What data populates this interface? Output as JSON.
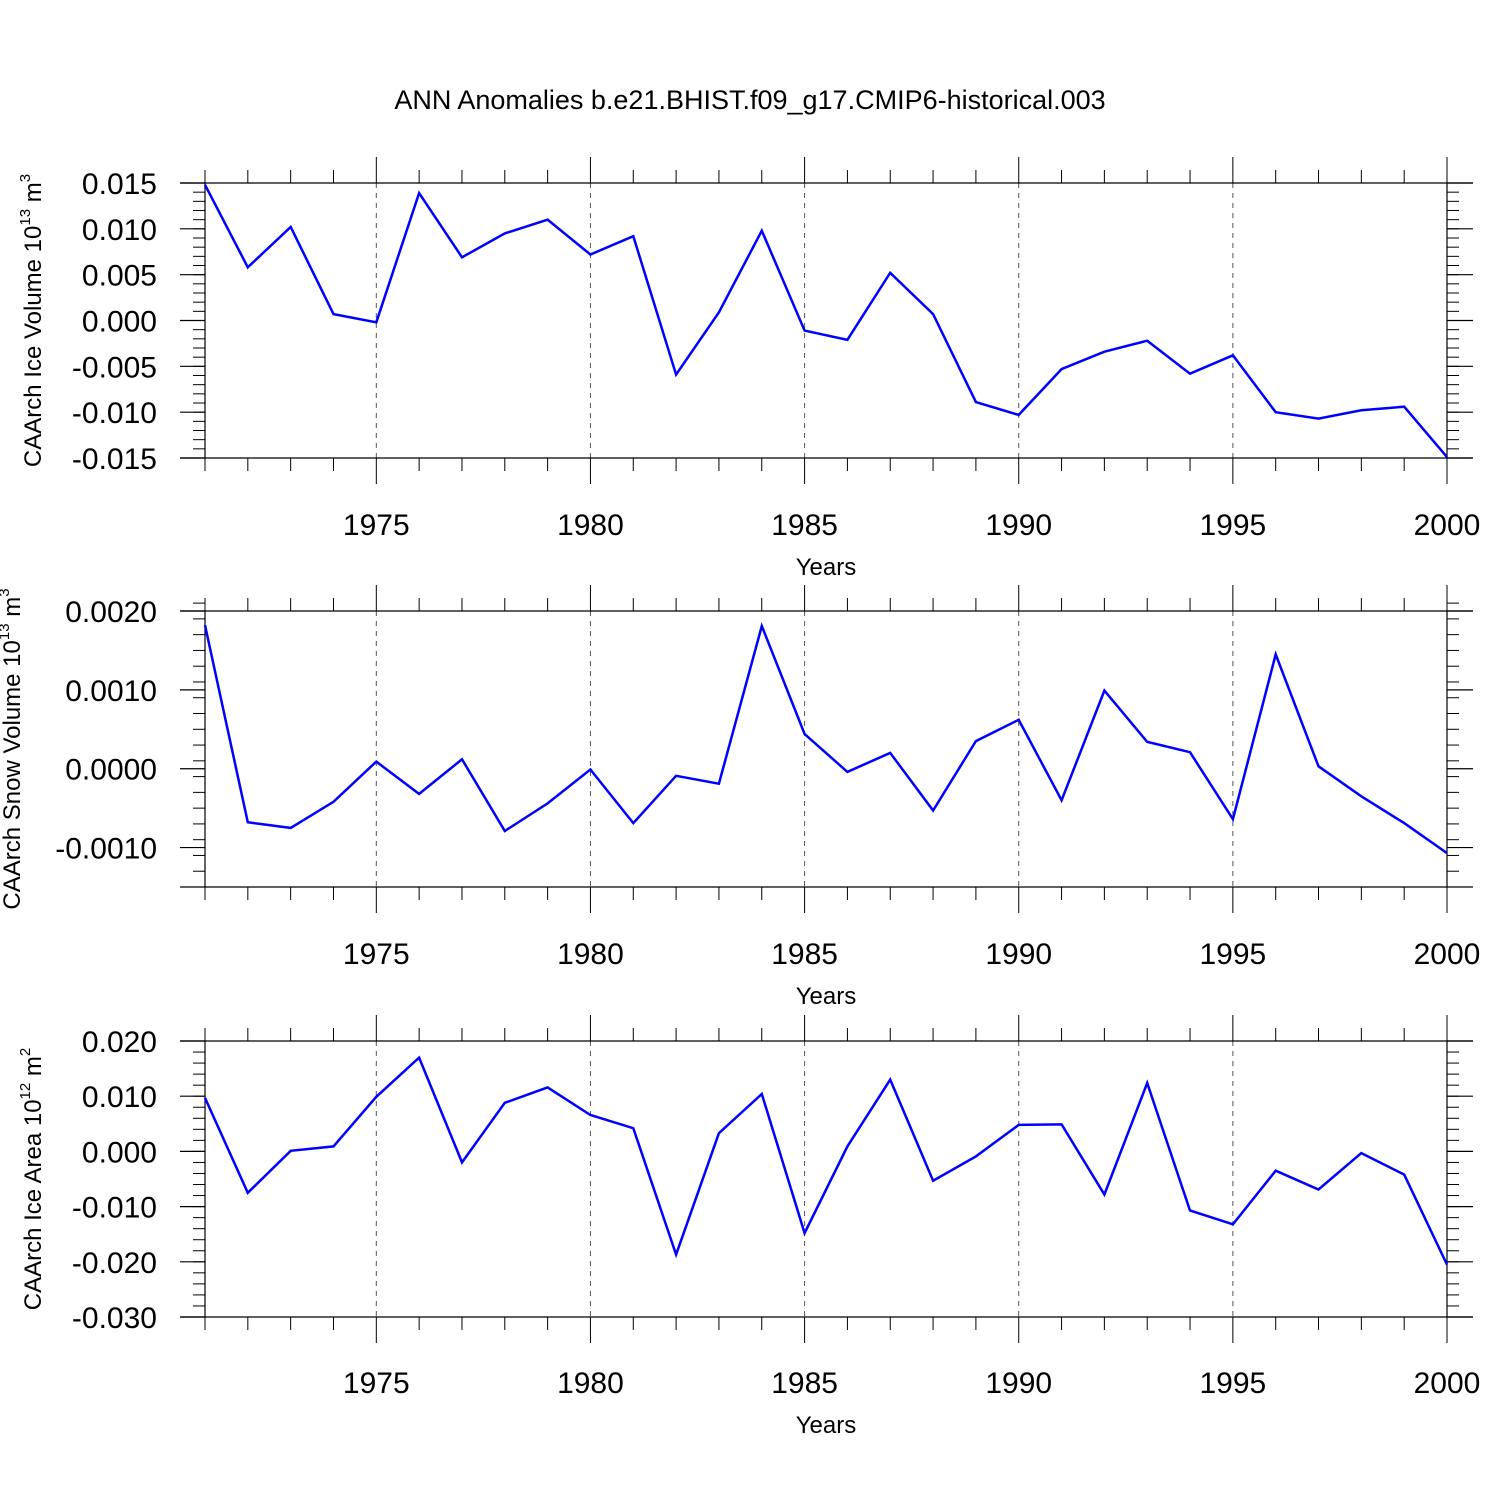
{
  "title": "ANN Anomalies b.e21.BHIST.f09_g17.CMIP6-historical.003",
  "line_color": "#0000ff",
  "grid_color": "#555555",
  "chart_data": [
    {
      "type": "line",
      "title": "ANN Anomalies b.e21.BHIST.f09_g17.CMIP6-historical.003",
      "xlabel": "Years",
      "ylabel": {
        "base": "CAArch Ice Volume 10",
        "exp": "13",
        "unit": " m",
        "unit_exp": "3"
      },
      "x": [
        1971,
        1972,
        1973,
        1974,
        1975,
        1976,
        1977,
        1978,
        1979,
        1980,
        1981,
        1982,
        1983,
        1984,
        1985,
        1986,
        1987,
        1988,
        1989,
        1990,
        1991,
        1992,
        1993,
        1994,
        1995,
        1996,
        1997,
        1998,
        1999,
        2000
      ],
      "values": [
        0.0148,
        0.0058,
        0.0102,
        0.0007,
        -0.0002,
        0.0139,
        0.0069,
        0.0095,
        0.011,
        0.0072,
        0.0092,
        -0.0059,
        0.0009,
        0.0098,
        -0.0011,
        -0.0021,
        0.0052,
        0.0007,
        -0.0089,
        -0.0103,
        -0.0053,
        -0.0034,
        -0.0022,
        -0.0058,
        -0.0038,
        -0.01,
        -0.0107,
        -0.0098,
        -0.0094,
        -0.0149
      ],
      "xlim": [
        1971,
        2000
      ],
      "ylim": [
        -0.015,
        0.015
      ],
      "xticks": [
        1975,
        1980,
        1985,
        1990,
        1995,
        2000
      ],
      "xtick_labels": [
        "1975",
        "1980",
        "1985",
        "1990",
        "1995",
        "2000"
      ],
      "yticks": [
        0.015,
        0.01,
        0.005,
        0.0,
        -0.005,
        -0.01,
        -0.015
      ],
      "ytick_labels": [
        "0.015",
        "0.010",
        "0.005",
        "0.000",
        "-0.005",
        "-0.010",
        "-0.015"
      ],
      "yminor_step": 0.001
    },
    {
      "type": "line",
      "xlabel": "Years",
      "ylabel": {
        "base": "CAArch Snow Volume 10",
        "exp": "13",
        "unit": " m",
        "unit_exp": "3"
      },
      "x": [
        1971,
        1972,
        1973,
        1974,
        1975,
        1976,
        1977,
        1978,
        1979,
        1980,
        1981,
        1982,
        1983,
        1984,
        1985,
        1986,
        1987,
        1988,
        1989,
        1990,
        1991,
        1992,
        1993,
        1994,
        1995,
        1996,
        1997,
        1998,
        1999,
        2000
      ],
      "values": [
        0.00182,
        -0.00068,
        -0.00075,
        -0.00042,
        9e-05,
        -0.00032,
        0.00012,
        -0.00079,
        -0.00044,
        -1e-05,
        -0.00069,
        -9e-05,
        -0.00019,
        0.00181,
        0.00044,
        -4e-05,
        0.0002,
        -0.00053,
        0.00035,
        0.00062,
        -0.0004,
        0.00099,
        0.00034,
        0.00021,
        -0.00064,
        0.00145,
        3e-05,
        -0.00035,
        -0.00069,
        -0.00107
      ],
      "xlim": [
        1971,
        2000
      ],
      "ylim": [
        -0.0015,
        0.002
      ],
      "xticks": [
        1975,
        1980,
        1985,
        1990,
        1995,
        2000
      ],
      "xtick_labels": [
        "1975",
        "1980",
        "1985",
        "1990",
        "1995",
        "2000"
      ],
      "yticks": [
        0.002,
        0.001,
        0.0,
        -0.001
      ],
      "ytick_labels": [
        "0.0020",
        "0.0010",
        "0.0000",
        "-0.0010"
      ],
      "yminor_step": 0.0002
    },
    {
      "type": "line",
      "xlabel": "Years",
      "ylabel": {
        "base": "CAArch Ice Area 10",
        "exp": "12",
        "unit": " m",
        "unit_exp": "2"
      },
      "x": [
        1971,
        1972,
        1973,
        1974,
        1975,
        1976,
        1977,
        1978,
        1979,
        1980,
        1981,
        1982,
        1983,
        1984,
        1985,
        1986,
        1987,
        1988,
        1989,
        1990,
        1991,
        1992,
        1993,
        1994,
        1995,
        1996,
        1997,
        1998,
        1999,
        2000
      ],
      "values": [
        0.0097,
        -0.0075,
        0.0001,
        0.0009,
        0.0099,
        0.017,
        -0.002,
        0.0088,
        0.0116,
        0.0066,
        0.0042,
        -0.0187,
        0.0033,
        0.0104,
        -0.0148,
        0.0009,
        0.013,
        -0.0053,
        -0.0009,
        0.0048,
        0.0049,
        -0.0078,
        0.0124,
        -0.0107,
        -0.0132,
        -0.0035,
        -0.0069,
        -0.0003,
        -0.0042,
        -0.0205
      ],
      "xlim": [
        1971,
        2000
      ],
      "ylim": [
        -0.03,
        0.02
      ],
      "xticks": [
        1975,
        1980,
        1985,
        1990,
        1995,
        2000
      ],
      "xtick_labels": [
        "1975",
        "1980",
        "1985",
        "1990",
        "1995",
        "2000"
      ],
      "yticks": [
        0.02,
        0.01,
        0.0,
        -0.01,
        -0.02,
        -0.03
      ],
      "ytick_labels": [
        "0.020",
        "0.010",
        "0.000",
        "-0.010",
        "-0.020",
        "-0.030"
      ],
      "yminor_step": 0.002
    }
  ]
}
